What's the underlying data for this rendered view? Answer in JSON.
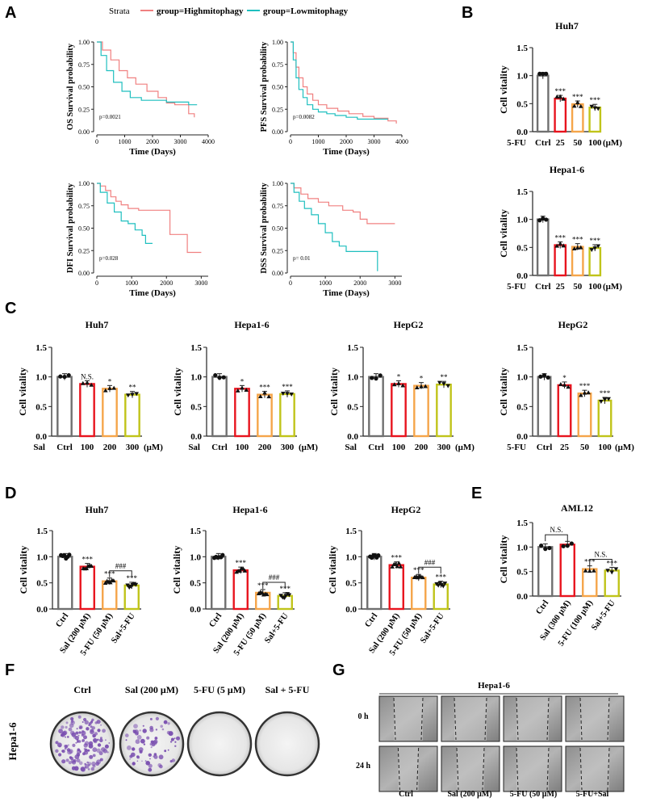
{
  "panel_letters": [
    "A",
    "B",
    "C",
    "D",
    "E",
    "F",
    "G"
  ],
  "colors": {
    "high": "#f08080",
    "low": "#1fbfbf",
    "ctrl": "#707070",
    "red": "#e8141e",
    "orange": "#f5a54a",
    "olive": "#c0c41a",
    "dish_purple": "#7a4fb0",
    "dish_bg": "#d8d4dc"
  },
  "legend": {
    "strata_label": "Strata",
    "high_label": "group=Highmitophagy",
    "low_label": "group=Lowmitophagy"
  },
  "km": {
    "x_ticks": [
      "0",
      "1000",
      "2000",
      "3000",
      "4000"
    ],
    "x_ticks_short": [
      "0",
      "1000",
      "2000",
      "3000"
    ],
    "y_ticks": [
      "0.00",
      "0.25",
      "0.50",
      "0.75",
      "1.00"
    ],
    "xlabel": "Time (Days)"
  },
  "chart_data": [
    {
      "id": "A-OS",
      "type": "line",
      "ylabel": "OS Survival probability",
      "xlabel": "Time (Days)",
      "pvalue": "p=0.0021",
      "xlim": [
        0,
        4000
      ],
      "ylim": [
        0,
        1
      ],
      "series": [
        {
          "name": "group=Highmitophagy",
          "x": [
            0,
            200,
            500,
            800,
            1100,
            1400,
            1800,
            2200,
            2500,
            2800,
            3200,
            3300,
            3500
          ],
          "y": [
            1,
            0.91,
            0.8,
            0.68,
            0.6,
            0.53,
            0.45,
            0.38,
            0.32,
            0.3,
            0.3,
            0.2,
            0.16
          ]
        },
        {
          "name": "group=Lowmitophagy",
          "x": [
            0,
            150,
            350,
            600,
            900,
            1200,
            1600,
            2000,
            2500,
            3300,
            3600
          ],
          "y": [
            1,
            0.85,
            0.68,
            0.55,
            0.45,
            0.38,
            0.35,
            0.35,
            0.33,
            0.3,
            0.3
          ]
        }
      ]
    },
    {
      "id": "A-PFS",
      "type": "line",
      "ylabel": "PFS Survival probability",
      "xlabel": "Time (Days)",
      "pvalue": "p=0.0082",
      "xlim": [
        0,
        4000
      ],
      "ylim": [
        0,
        1
      ],
      "series": [
        {
          "name": "group=Highmitophagy",
          "x": [
            0,
            100,
            200,
            300,
            450,
            600,
            800,
            1000,
            1300,
            1700,
            2100,
            2600,
            3000,
            3500,
            3800
          ],
          "y": [
            1,
            0.88,
            0.72,
            0.6,
            0.5,
            0.42,
            0.35,
            0.3,
            0.26,
            0.23,
            0.2,
            0.17,
            0.15,
            0.12,
            0.09
          ]
        },
        {
          "name": "group=Lowmitophagy",
          "x": [
            0,
            100,
            200,
            300,
            450,
            600,
            800,
            1000,
            1300,
            1600,
            2000,
            2400,
            3200,
            3500
          ],
          "y": [
            1,
            0.8,
            0.6,
            0.47,
            0.38,
            0.3,
            0.25,
            0.22,
            0.2,
            0.18,
            0.16,
            0.14,
            0.14,
            0.14
          ]
        }
      ]
    },
    {
      "id": "A-DFI",
      "type": "line",
      "ylabel": "DFI Survival probability",
      "xlabel": "Time (Days)",
      "pvalue": "p=0.028",
      "xlim": [
        0,
        3200
      ],
      "ylim": [
        0,
        1
      ],
      "series": [
        {
          "name": "group=Highmitophagy",
          "x": [
            0,
            100,
            250,
            400,
            550,
            700,
            900,
            1200,
            1500,
            1900,
            2100,
            2600,
            3000
          ],
          "y": [
            1,
            0.97,
            0.92,
            0.85,
            0.8,
            0.76,
            0.72,
            0.7,
            0.7,
            0.7,
            0.43,
            0.23,
            0.23
          ]
        },
        {
          "name": "group=Lowmitophagy",
          "x": [
            0,
            100,
            300,
            500,
            700,
            900,
            1100,
            1300,
            1400,
            1600
          ],
          "y": [
            1,
            0.9,
            0.78,
            0.68,
            0.58,
            0.55,
            0.48,
            0.42,
            0.33,
            0.33
          ]
        }
      ]
    },
    {
      "id": "A-DSS",
      "type": "line",
      "ylabel": "DSS Survival probability",
      "xlabel": "Time (Days)",
      "pvalue": "p= 0.01",
      "xlim": [
        0,
        3200
      ],
      "ylim": [
        0,
        1
      ],
      "series": [
        {
          "name": "group=Highmitophagy",
          "x": [
            0,
            100,
            300,
            500,
            800,
            1100,
            1500,
            1800,
            2000,
            2200,
            2500,
            3000
          ],
          "y": [
            1,
            0.95,
            0.88,
            0.83,
            0.79,
            0.75,
            0.7,
            0.68,
            0.6,
            0.55,
            0.55,
            0.55
          ]
        },
        {
          "name": "group=Lowmitophagy",
          "x": [
            0,
            100,
            250,
            400,
            600,
            800,
            1000,
            1200,
            1400,
            1600,
            2000,
            2400,
            2500
          ],
          "y": [
            1,
            0.9,
            0.8,
            0.72,
            0.65,
            0.55,
            0.45,
            0.35,
            0.3,
            0.24,
            0.24,
            0.24,
            0.02
          ]
        }
      ]
    },
    {
      "id": "B-Huh7",
      "type": "bar",
      "title": "Huh7",
      "ylabel": "Cell vitality",
      "treatment": "5-FU",
      "unit": "(μM)",
      "categories": [
        "Ctrl",
        "25",
        "50",
        "100"
      ],
      "values": [
        1.0,
        0.59,
        0.49,
        0.43
      ],
      "sig": [
        "",
        "***",
        "***",
        "***"
      ],
      "ylim": [
        0,
        1.5
      ],
      "yticks": [
        "0.0",
        "0.5",
        "1.0",
        "1.5"
      ]
    },
    {
      "id": "B-Hepa1-6",
      "type": "bar",
      "title": "Hepa1-6",
      "ylabel": "Cell vitality",
      "treatment": "5-FU",
      "unit": "(μM)",
      "categories": [
        "Ctrl",
        "25",
        "50",
        "100"
      ],
      "values": [
        1.0,
        0.54,
        0.51,
        0.49
      ],
      "sig": [
        "",
        "***",
        "***",
        "***"
      ],
      "ylim": [
        0,
        1.5
      ],
      "yticks": [
        "0.0",
        "0.5",
        "1.0",
        "1.5"
      ]
    },
    {
      "id": "C-Huh7",
      "type": "bar",
      "title": "Huh7",
      "ylabel": "Cell vitality",
      "treatment": "Sal",
      "unit": "(μM)",
      "categories": [
        "Ctrl",
        "100",
        "200",
        "300"
      ],
      "values": [
        1.0,
        0.88,
        0.8,
        0.7
      ],
      "sig": [
        "",
        "N.S.",
        "*",
        "**"
      ],
      "ylim": [
        0,
        1.5
      ],
      "yticks": [
        "0.0",
        "0.5",
        "1.0",
        "1.5"
      ]
    },
    {
      "id": "C-Hepa1-6",
      "type": "bar",
      "title": "Hepa1-6",
      "ylabel": "Cell vitality",
      "treatment": "Sal",
      "unit": "(μM)",
      "categories": [
        "Ctrl",
        "100",
        "200",
        "300"
      ],
      "values": [
        1.0,
        0.8,
        0.7,
        0.71
      ],
      "sig": [
        "",
        "*",
        "***",
        "***"
      ],
      "ylim": [
        0,
        1.5
      ],
      "yticks": [
        "0.0",
        "0.5",
        "1.0",
        "1.5"
      ]
    },
    {
      "id": "C-HepG2-Sal",
      "type": "bar",
      "title": "HepG2",
      "ylabel": "Cell vitality",
      "treatment": "Sal",
      "unit": "(μM)",
      "categories": [
        "Ctrl",
        "100",
        "200",
        "300"
      ],
      "values": [
        1.0,
        0.88,
        0.85,
        0.87
      ],
      "sig": [
        "",
        "*",
        "*",
        "**"
      ],
      "ylim": [
        0,
        1.5
      ],
      "yticks": [
        "0.0",
        "0.5",
        "1.0",
        "1.5"
      ]
    },
    {
      "id": "C-HepG2-5FU",
      "type": "bar",
      "title": "HepG2",
      "ylabel": "Cell vitality",
      "treatment": "5-FU",
      "unit": "(μM)",
      "categories": [
        "Ctrl",
        "25",
        "50",
        "100"
      ],
      "values": [
        1.0,
        0.86,
        0.72,
        0.6
      ],
      "sig": [
        "",
        "*",
        "***",
        "***"
      ],
      "ylim": [
        0,
        1.5
      ],
      "yticks": [
        "0.0",
        "0.5",
        "1.0",
        "1.5"
      ]
    },
    {
      "id": "D-Huh7",
      "type": "bar",
      "title": "Huh7",
      "ylabel": "Cell vitality",
      "categories": [
        "Ctrl",
        "Sal (200 μM)",
        "5-FU (50 μM)",
        "Sal+5-FU"
      ],
      "values": [
        1.0,
        0.81,
        0.53,
        0.45
      ],
      "sig": [
        "",
        "***",
        "***",
        "***"
      ],
      "bracket": {
        "from": 2,
        "to": 3,
        "label": "###"
      },
      "ylim": [
        0,
        1.5
      ],
      "yticks": [
        "0.0",
        "0.5",
        "1.0",
        "1.5"
      ]
    },
    {
      "id": "D-Hepa1-6",
      "type": "bar",
      "title": "Hepa1-6",
      "ylabel": "Cell vitality",
      "categories": [
        "Ctrl",
        "Sal (200 μM)",
        "5-FU (50 μM)",
        "Sal+5-FU"
      ],
      "values": [
        1.0,
        0.74,
        0.31,
        0.25
      ],
      "sig": [
        "",
        "***",
        "***",
        "***"
      ],
      "bracket": {
        "from": 2,
        "to": 3,
        "label": "###"
      },
      "ylim": [
        0,
        1.5
      ],
      "yticks": [
        "0.0",
        "0.5",
        "1.0",
        "1.5"
      ]
    },
    {
      "id": "D-HepG2",
      "type": "bar",
      "title": "HepG2",
      "ylabel": "Cell vitality",
      "categories": [
        "Ctrl",
        "Sal (200 μM)",
        "5-FU (50 μM)",
        "Sal+5-FU"
      ],
      "values": [
        1.0,
        0.84,
        0.6,
        0.47
      ],
      "sig": [
        "",
        "***",
        "***",
        "***"
      ],
      "bracket": {
        "from": 2,
        "to": 3,
        "label": "###"
      },
      "ylim": [
        0,
        1.5
      ],
      "yticks": [
        "0.0",
        "0.5",
        "1.0",
        "1.5"
      ]
    },
    {
      "id": "E-AML12",
      "type": "bar",
      "title": "AML12",
      "ylabel": "Cell vitality",
      "categories": [
        "Ctrl",
        "Sal (300 μM)",
        "5-FU (100 μM)",
        "Sal+5-FU"
      ],
      "values": [
        1.0,
        1.05,
        0.55,
        0.52
      ],
      "sig": [
        "",
        "",
        "***",
        "***"
      ],
      "brackets": [
        {
          "from": 0,
          "to": 1,
          "label": "N.S."
        },
        {
          "from": 2,
          "to": 3,
          "label": "N.S."
        }
      ],
      "ylim": [
        0,
        1.5
      ],
      "yticks": [
        "0.0",
        "0.5",
        "1.0",
        "1.5"
      ]
    }
  ],
  "panel_f": {
    "row_label": "Hepa1-6",
    "dishes": [
      {
        "label": "Ctrl",
        "colonies": "dense"
      },
      {
        "label": "Sal (200 μM)",
        "colonies": "medium"
      },
      {
        "label": "5-FU (5 μM)",
        "colonies": "none"
      },
      {
        "label": "Sal + 5-FU",
        "colonies": "none"
      }
    ]
  },
  "panel_g": {
    "title": "Hepa1-6",
    "rows": [
      "0 h",
      "24 h"
    ],
    "columns": [
      "Ctrl",
      "Sal (200 μM)",
      "5-FU (50 μM)",
      "5-FU+Sal"
    ]
  }
}
